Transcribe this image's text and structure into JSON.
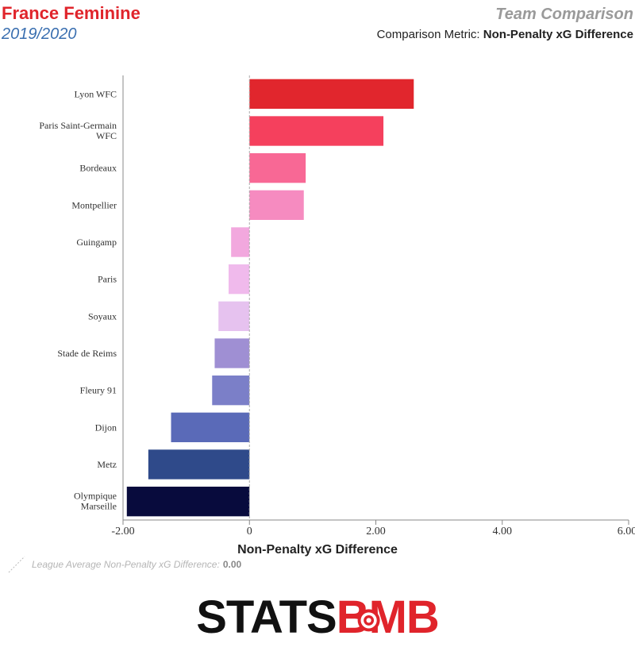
{
  "header": {
    "league": "France Feminine",
    "season": "2019/2020",
    "report_title": "Team Comparison",
    "metric_prefix": "Comparison Metric:",
    "metric_name": "Non-Penalty xG Difference"
  },
  "legend": {
    "label": "League Average Non-Penalty xG Difference:",
    "value": "0.00"
  },
  "brand": {
    "name": "STATSBOMB",
    "part1": "STATS",
    "part2": "B",
    "part3": "MB",
    "color_dark": "#111111",
    "color_accent": "#e0242b"
  },
  "chart_data": {
    "type": "bar",
    "orientation": "horizontal",
    "xlabel": "Non-Penalty xG Difference",
    "xlim": [
      -2.0,
      6.0
    ],
    "xticks": [
      -2.0,
      0,
      2.0,
      4.0,
      6.0
    ],
    "xtick_labels": [
      "-2.00",
      "0",
      "2.00",
      "4.00",
      "6.00"
    ],
    "reference_line": 0.0,
    "categories": [
      "Lyon WFC",
      "Paris Saint-Germain WFC",
      "Bordeaux",
      "Montpellier",
      "Guingamp",
      "Paris",
      "Soyaux",
      "Stade de Reims",
      "Fleury 91",
      "Dijon",
      "Metz",
      "Olympique Marseille"
    ],
    "values": [
      2.6,
      2.12,
      0.89,
      0.86,
      -0.29,
      -0.33,
      -0.49,
      -0.55,
      -0.59,
      -1.24,
      -1.6,
      -1.94
    ],
    "colors": [
      "#e1262d",
      "#f5405d",
      "#f86895",
      "#f68bc0",
      "#f2a8de",
      "#f0baec",
      "#e6c2ef",
      "#9f8fd3",
      "#7b7fc8",
      "#5a6ab8",
      "#2f4a8a",
      "#080b3d"
    ],
    "grid": false
  }
}
